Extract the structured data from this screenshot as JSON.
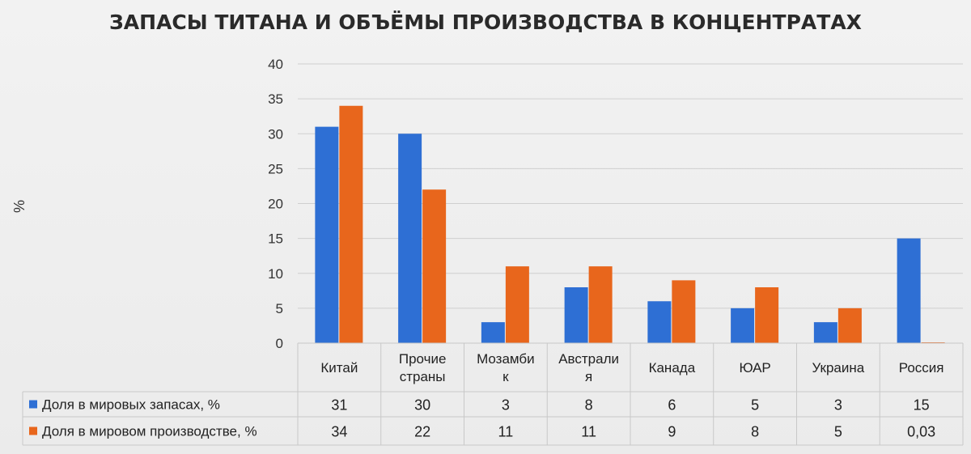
{
  "chart_data": {
    "type": "bar",
    "title": "ЗАПАСЫ ТИТАНА И ОБЪЁМЫ ПРОИЗВОДСТВА В КОНЦЕНТРАТАХ",
    "ylabel": "%",
    "ylim": [
      0,
      40
    ],
    "yticks": [
      0,
      5,
      10,
      15,
      20,
      25,
      30,
      35,
      40
    ],
    "grid": true,
    "categories": [
      [
        "Китай"
      ],
      [
        "Прочие",
        "страны"
      ],
      [
        "Мозамби",
        "к"
      ],
      [
        "Австрали",
        "я"
      ],
      [
        "Канада"
      ],
      [
        "ЮАР"
      ],
      [
        "Украина"
      ],
      [
        "Россия"
      ]
    ],
    "series": [
      {
        "name": "Доля в мировых запасах, %",
        "color": "#2e6fd4",
        "values": [
          31,
          30,
          3,
          8,
          6,
          5,
          3,
          15
        ],
        "labels": [
          "31",
          "30",
          "3",
          "8",
          "6",
          "5",
          "3",
          "15"
        ]
      },
      {
        "name": "Доля в мировом производстве, %",
        "color": "#e8661c",
        "values": [
          34,
          22,
          11,
          11,
          9,
          8,
          5,
          0.03
        ],
        "labels": [
          "34",
          "22",
          "11",
          "11",
          "9",
          "8",
          "5",
          "0,03"
        ]
      }
    ],
    "legend": "data-table-left"
  }
}
